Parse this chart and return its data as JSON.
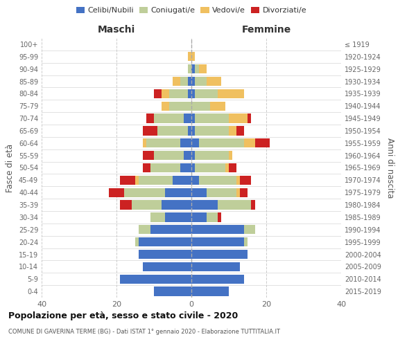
{
  "age_groups": [
    "0-4",
    "5-9",
    "10-14",
    "15-19",
    "20-24",
    "25-29",
    "30-34",
    "35-39",
    "40-44",
    "45-49",
    "50-54",
    "55-59",
    "60-64",
    "65-69",
    "70-74",
    "75-79",
    "80-84",
    "85-89",
    "90-94",
    "95-99",
    "100+"
  ],
  "birth_years": [
    "2015-2019",
    "2010-2014",
    "2005-2009",
    "2000-2004",
    "1995-1999",
    "1990-1994",
    "1985-1989",
    "1980-1984",
    "1975-1979",
    "1970-1974",
    "1965-1969",
    "1960-1964",
    "1955-1959",
    "1950-1954",
    "1945-1949",
    "1940-1944",
    "1935-1939",
    "1930-1934",
    "1925-1929",
    "1920-1924",
    "≤ 1919"
  ],
  "colors": {
    "celibi": "#4472C4",
    "coniugati": "#BFCE9A",
    "vedovi": "#F0C060",
    "divorziati": "#CC2222"
  },
  "maschi": {
    "celibi": [
      10,
      19,
      13,
      14,
      14,
      11,
      7,
      8,
      7,
      5,
      3,
      2,
      3,
      1,
      2,
      0,
      1,
      1,
      0,
      0,
      0
    ],
    "coniugati": [
      0,
      0,
      0,
      0,
      1,
      3,
      4,
      8,
      11,
      9,
      8,
      8,
      9,
      8,
      8,
      6,
      5,
      2,
      1,
      0,
      0
    ],
    "vedovi": [
      0,
      0,
      0,
      0,
      0,
      0,
      0,
      0,
      0,
      1,
      0,
      0,
      1,
      0,
      0,
      2,
      2,
      2,
      0,
      1,
      0
    ],
    "divorziati": [
      0,
      0,
      0,
      0,
      0,
      0,
      0,
      3,
      4,
      4,
      2,
      3,
      0,
      4,
      2,
      0,
      2,
      0,
      0,
      0,
      0
    ]
  },
  "femmine": {
    "celibi": [
      10,
      14,
      13,
      15,
      14,
      14,
      4,
      7,
      4,
      2,
      1,
      1,
      2,
      1,
      1,
      0,
      1,
      1,
      1,
      0,
      0
    ],
    "coniugati": [
      0,
      0,
      0,
      0,
      1,
      3,
      3,
      9,
      8,
      10,
      8,
      9,
      12,
      9,
      9,
      5,
      6,
      3,
      1,
      0,
      0
    ],
    "vedovi": [
      0,
      0,
      0,
      0,
      0,
      0,
      0,
      0,
      1,
      1,
      1,
      1,
      3,
      2,
      5,
      4,
      7,
      4,
      2,
      1,
      0
    ],
    "divorziati": [
      0,
      0,
      0,
      0,
      0,
      0,
      1,
      1,
      2,
      3,
      2,
      0,
      4,
      2,
      1,
      0,
      0,
      0,
      0,
      0,
      0
    ]
  },
  "xlim": 40,
  "xtick_step": 20,
  "title": "Popolazione per età, sesso e stato civile - 2020",
  "subtitle": "COMUNE DI GAVERINA TERME (BG) - Dati ISTAT 1° gennaio 2020 - Elaborazione TUTTITALIA.IT",
  "ylabel_left": "Fasce di età",
  "ylabel_right": "Anni di nascita",
  "xlabel_left": "Maschi",
  "xlabel_right": "Femmine",
  "legend_labels": [
    "Celibi/Nubili",
    "Coniugati/e",
    "Vedovi/e",
    "Divorziati/e"
  ],
  "background_color": "#ffffff",
  "grid_color": "#cccccc",
  "bar_height": 0.75
}
